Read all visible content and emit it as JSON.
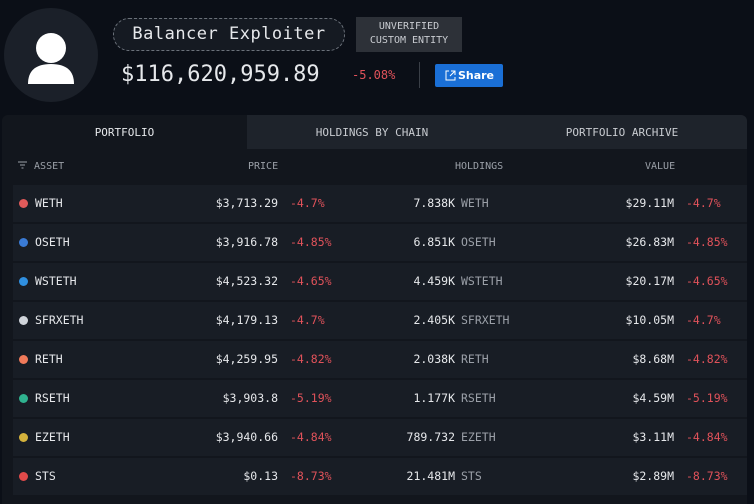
{
  "header": {
    "name": "Balancer Exploiter",
    "badge": [
      "UNVERIFIED",
      "CUSTOM ENTITY"
    ],
    "balance": "$116,620,959.89",
    "change": "-5.08%",
    "share": "Share"
  },
  "tabs": [
    "PORTFOLIO",
    "HOLDINGS BY CHAIN",
    "PORTFOLIO ARCHIVE"
  ],
  "table": {
    "columns": [
      "ASSET",
      "PRICE",
      "HOLDINGS",
      "VALUE"
    ],
    "rows": [
      {
        "asset": "WETH",
        "price": "$3,713.29",
        "price_change": "-4.7%",
        "holdings": "7.838K",
        "symbol": "WETH",
        "value": "$29.11M",
        "value_change": "-4.7%"
      },
      {
        "asset": "OSETH",
        "price": "$3,916.78",
        "price_change": "-4.85%",
        "holdings": "6.851K",
        "symbol": "OSETH",
        "value": "$26.83M",
        "value_change": "-4.85%"
      },
      {
        "asset": "WSTETH",
        "price": "$4,523.32",
        "price_change": "-4.65%",
        "holdings": "4.459K",
        "symbol": "WSTETH",
        "value": "$20.17M",
        "value_change": "-4.65%"
      },
      {
        "asset": "SFRXETH",
        "price": "$4,179.13",
        "price_change": "-4.7%",
        "holdings": "2.405K",
        "symbol": "SFRXETH",
        "value": "$10.05M",
        "value_change": "-4.7%"
      },
      {
        "asset": "RETH",
        "price": "$4,259.95",
        "price_change": "-4.82%",
        "holdings": "2.038K",
        "symbol": "RETH",
        "value": "$8.68M",
        "value_change": "-4.82%"
      },
      {
        "asset": "RSETH",
        "price": "$3,903.8",
        "price_change": "-5.19%",
        "holdings": "1.177K",
        "symbol": "RSETH",
        "value": "$4.59M",
        "value_change": "-5.19%"
      },
      {
        "asset": "EZETH",
        "price": "$3,940.66",
        "price_change": "-4.84%",
        "holdings": "789.732",
        "symbol": "EZETH",
        "value": "$3.11M",
        "value_change": "-4.84%"
      },
      {
        "asset": "STS",
        "price": "$0.13",
        "price_change": "-8.73%",
        "holdings": "21.481M",
        "symbol": "STS",
        "value": "$2.89M",
        "value_change": "-8.73%"
      }
    ]
  }
}
